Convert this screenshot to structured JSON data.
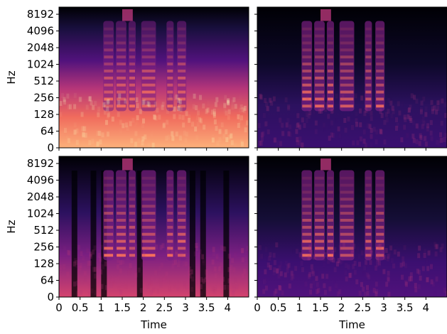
{
  "chart_data": [
    {
      "type": "spectrogram",
      "ylabel": "Hz",
      "xlim": [
        0,
        4.5
      ],
      "ylim": [
        0,
        11025
      ],
      "yscale": "symlog",
      "linthresh": 64,
      "yticks": [
        0,
        64,
        128,
        256,
        512,
        1024,
        2048,
        4096,
        8192
      ],
      "colormap": "magma"
    },
    {
      "type": "spectrogram",
      "xlim": [
        0,
        4.5
      ],
      "ylim": [
        0,
        11025
      ],
      "yscale": "symlog",
      "linthresh": 64,
      "colormap": "magma"
    },
    {
      "type": "spectrogram",
      "ylabel": "Hz",
      "xlabel": "Time",
      "xlim": [
        0,
        4.5
      ],
      "ylim": [
        0,
        11025
      ],
      "yscale": "symlog",
      "linthresh": 64,
      "yticks": [
        0,
        64,
        128,
        256,
        512,
        1024,
        2048,
        4096,
        8192
      ],
      "xticks": [
        0,
        0.5,
        1,
        1.5,
        2,
        2.5,
        3,
        3.5,
        4
      ],
      "colormap": "magma"
    },
    {
      "type": "spectrogram",
      "xlabel": "Time",
      "xlim": [
        0,
        4.5
      ],
      "ylim": [
        0,
        11025
      ],
      "yscale": "symlog",
      "linthresh": 64,
      "xticks": [
        0,
        0.5,
        1,
        1.5,
        2,
        2.5,
        3,
        3.5,
        4
      ],
      "colormap": "magma"
    }
  ]
}
